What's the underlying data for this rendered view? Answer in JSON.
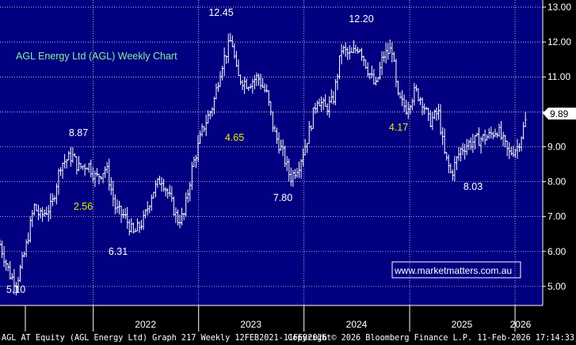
{
  "chart_data": {
    "type": "ohlc",
    "title": "AGL Energy Ltd (AGL) Weekly Chart",
    "ylim": [
      4.25,
      13.0
    ],
    "y_ticks": [
      "13.00",
      "12.00",
      "11.00",
      "10.00",
      "9.00",
      "8.00",
      "7.00",
      "6.00",
      "5.00"
    ],
    "x_ticks": [
      "2022",
      "2023",
      "2024",
      "2025",
      "2026"
    ],
    "last_price": "9.89",
    "annotations": [
      {
        "text": "12.45",
        "x": "2023-01",
        "y": 12.45,
        "color": "#ffffff"
      },
      {
        "text": "12.20",
        "x": "2024-03",
        "y": 12.2,
        "color": "#ffffff"
      },
      {
        "text": "8.87",
        "x": "2021-11",
        "y": 8.87,
        "color": "#ffffff"
      },
      {
        "text": "2.56",
        "x": "2022-01",
        "y": 7.0,
        "color": "#e8e800"
      },
      {
        "text": "6.31",
        "x": "2022-07",
        "y": 6.31,
        "color": "#ffffff"
      },
      {
        "text": "5.10",
        "x": "2021-03",
        "y": 5.1,
        "color": "#ffffff"
      },
      {
        "text": "4.65",
        "x": "2023-04",
        "y": 9.0,
        "color": "#e8e800"
      },
      {
        "text": "7.80",
        "x": "2023-10",
        "y": 7.8,
        "color": "#ffffff"
      },
      {
        "text": "4.17",
        "x": "2024-08",
        "y": 9.5,
        "color": "#e8e800"
      },
      {
        "text": "8.03",
        "x": "2025-06",
        "y": 8.03,
        "color": "#ffffff"
      }
    ],
    "anchors": [
      {
        "t": "2021-02-12",
        "p": 6.2
      },
      {
        "t": "2021-03-20",
        "p": 5.3
      },
      {
        "t": "2021-04-10",
        "p": 5.1
      },
      {
        "t": "2021-05-10",
        "p": 6.0
      },
      {
        "t": "2021-06-10",
        "p": 7.3
      },
      {
        "t": "2021-07-01",
        "p": 7.0
      },
      {
        "t": "2021-08-10",
        "p": 7.3
      },
      {
        "t": "2021-09-10",
        "p": 8.5
      },
      {
        "t": "2021-10-20",
        "p": 8.75
      },
      {
        "t": "2021-11-10",
        "p": 8.4
      },
      {
        "t": "2021-12-15",
        "p": 8.5
      },
      {
        "t": "2022-01-10",
        "p": 8.1
      },
      {
        "t": "2022-02-15",
        "p": 8.4
      },
      {
        "t": "2022-03-20",
        "p": 7.2
      },
      {
        "t": "2022-04-20",
        "p": 7.0
      },
      {
        "t": "2022-05-20",
        "p": 6.5
      },
      {
        "t": "2022-06-25",
        "p": 6.9
      },
      {
        "t": "2022-07-25",
        "p": 7.7
      },
      {
        "t": "2022-08-25",
        "p": 8.1
      },
      {
        "t": "2022-09-20",
        "p": 7.6
      },
      {
        "t": "2022-10-20",
        "p": 6.9
      },
      {
        "t": "2022-11-10",
        "p": 7.0
      },
      {
        "t": "2022-12-10",
        "p": 8.4
      },
      {
        "t": "2023-01-15",
        "p": 9.5
      },
      {
        "t": "2023-02-20",
        "p": 10.2
      },
      {
        "t": "2023-03-20",
        "p": 11.3
      },
      {
        "t": "2023-04-25",
        "p": 12.1
      },
      {
        "t": "2023-05-15",
        "p": 11.0
      },
      {
        "t": "2023-06-20",
        "p": 10.8
      },
      {
        "t": "2023-07-25",
        "p": 11.0
      },
      {
        "t": "2023-08-25",
        "p": 10.5
      },
      {
        "t": "2023-09-20",
        "p": 9.4
      },
      {
        "t": "2023-10-20",
        "p": 8.8
      },
      {
        "t": "2023-11-15",
        "p": 8.1
      },
      {
        "t": "2023-12-15",
        "p": 8.5
      },
      {
        "t": "2024-01-15",
        "p": 9.3
      },
      {
        "t": "2024-02-15",
        "p": 10.4
      },
      {
        "t": "2024-03-15",
        "p": 10.1
      },
      {
        "t": "2024-04-10",
        "p": 10.3
      },
      {
        "t": "2024-05-10",
        "p": 11.8
      },
      {
        "t": "2024-06-10",
        "p": 11.6
      },
      {
        "t": "2024-07-10",
        "p": 11.9
      },
      {
        "t": "2024-08-10",
        "p": 11.2
      },
      {
        "t": "2024-09-05",
        "p": 10.7
      },
      {
        "t": "2024-10-01",
        "p": 11.6
      },
      {
        "t": "2024-11-01",
        "p": 11.8
      },
      {
        "t": "2024-11-20",
        "p": 10.4
      },
      {
        "t": "2024-12-20",
        "p": 10.1
      },
      {
        "t": "2025-01-20",
        "p": 10.6
      },
      {
        "t": "2025-02-15",
        "p": 10.3
      },
      {
        "t": "2025-03-10",
        "p": 9.7
      },
      {
        "t": "2025-04-10",
        "p": 10.0
      },
      {
        "t": "2025-05-01",
        "p": 8.8
      },
      {
        "t": "2025-05-25",
        "p": 8.2
      },
      {
        "t": "2025-06-25",
        "p": 8.9
      },
      {
        "t": "2025-07-25",
        "p": 9.1
      },
      {
        "t": "2025-08-25",
        "p": 9.2
      },
      {
        "t": "2025-10-01",
        "p": 9.3
      },
      {
        "t": "2025-11-01",
        "p": 9.5
      },
      {
        "t": "2025-12-10",
        "p": 8.8
      },
      {
        "t": "2026-01-10",
        "p": 9.0
      },
      {
        "t": "2026-02-11",
        "p": 9.85
      }
    ],
    "x_range": [
      "2021-02-12",
      "2026-02-11"
    ],
    "colors": {
      "background": "#000080",
      "bars": "#ffffff",
      "grid": "#ffffff",
      "label": "#e8e800",
      "title": "#8fe8a0",
      "watermark_text": "#ffffff",
      "watermark_border": "#ffffff"
    }
  },
  "watermark": "www.marketmatters.com.au",
  "footer": {
    "left": "AGL AT Equity (AGL Energy Ltd) Graph 217 Weekly 12FEB2021-11FEB2026",
    "right": "Copyright© 2026 Bloomberg Finance L.P.   11-Feb-2026 17:14:33"
  }
}
